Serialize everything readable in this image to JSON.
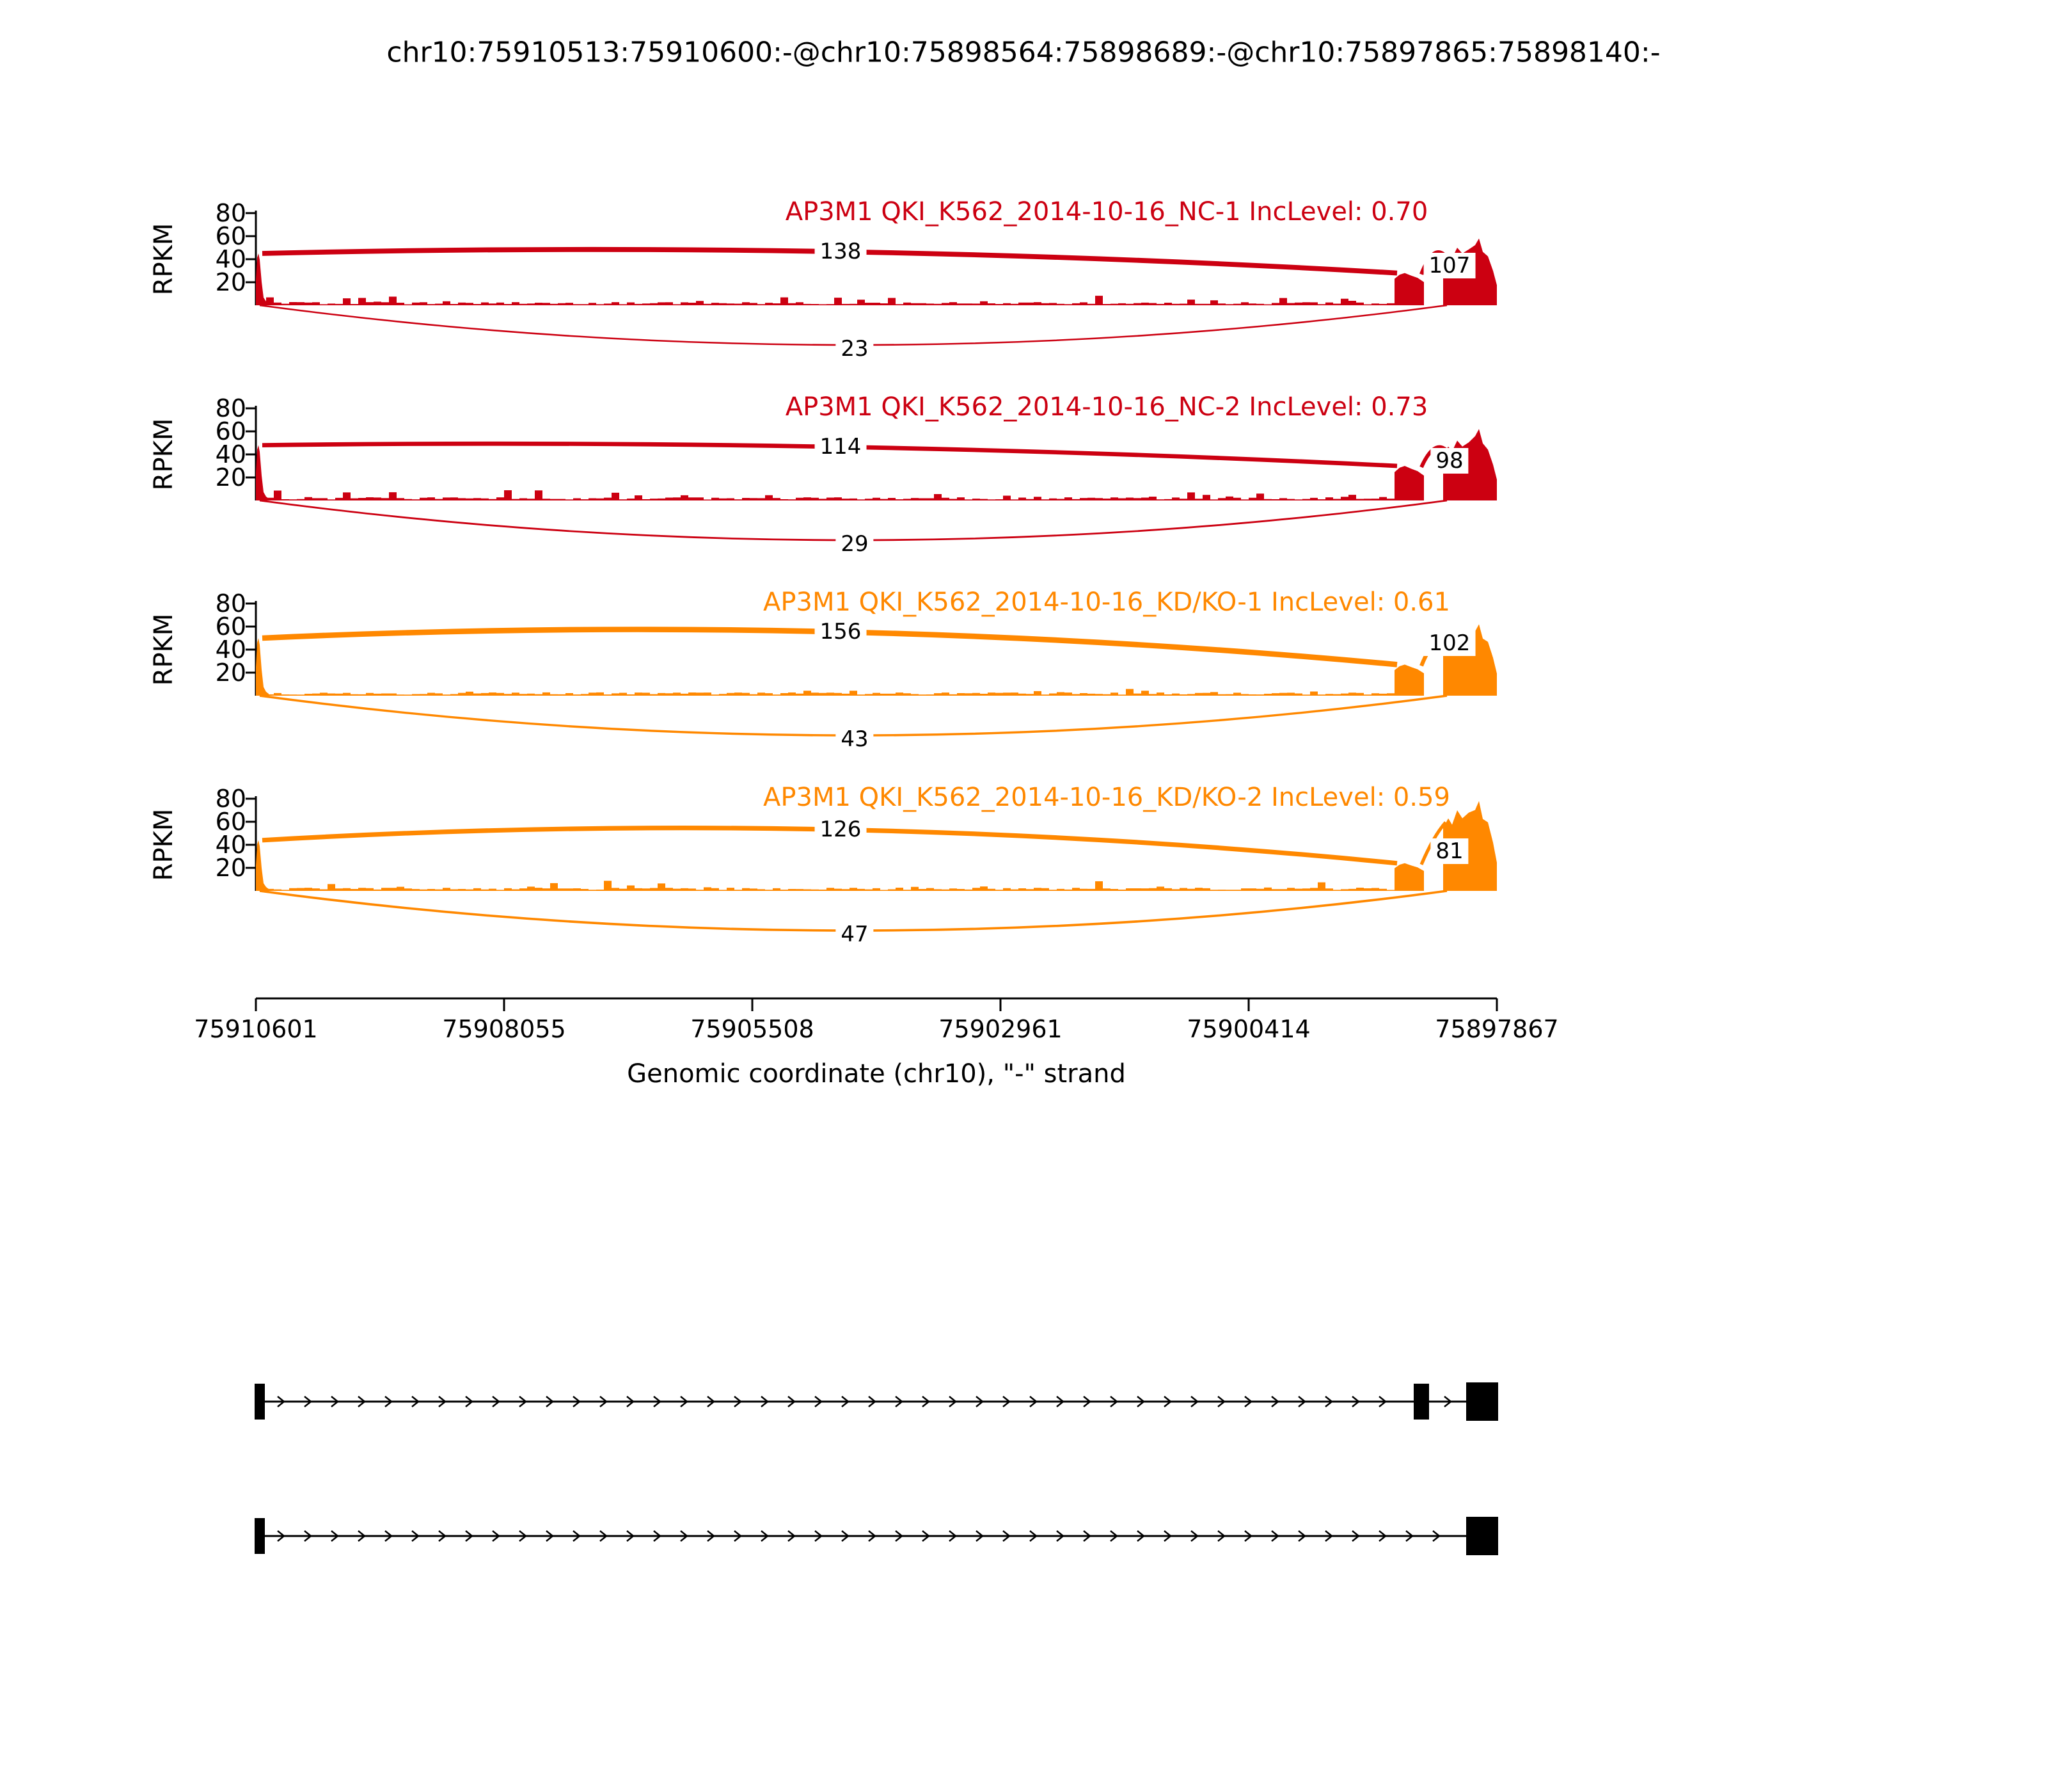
{
  "title": "chr10:75910513:75910600:-@chr10:75898564:75898689:-@chr10:75897865:75898140:-",
  "y_axis": {
    "label": "RPKM",
    "ticks": [
      "80",
      "60",
      "40",
      "20"
    ]
  },
  "x_axis": {
    "label": "Genomic coordinate (chr10), \"-\" strand",
    "ticks": [
      "75910601",
      "75908055",
      "75905508",
      "75902961",
      "75900414",
      "75897867"
    ]
  },
  "tracks": [
    {
      "label": "AP3M1 QKI_K562_2014-10-16_NC-1 IncLevel: 0.70",
      "color": "#CC0011",
      "inc_level": "0.70",
      "junction_labels": {
        "inclusion": "138",
        "skipping": "23",
        "downstream": "107"
      }
    },
    {
      "label": "AP3M1 QKI_K562_2014-10-16_NC-2 IncLevel: 0.73",
      "color": "#CC0011",
      "inc_level": "0.73",
      "junction_labels": {
        "inclusion": "114",
        "skipping": "29",
        "downstream": "98"
      }
    },
    {
      "label": "AP3M1 QKI_K562_2014-10-16_KD/KO-1 IncLevel: 0.61",
      "color": "#FF8800",
      "inc_level": "0.61",
      "junction_labels": {
        "inclusion": "156",
        "skipping": "43",
        "downstream": "102"
      }
    },
    {
      "label": "AP3M1 QKI_K562_2014-10-16_KD/KO-2 IncLevel: 0.59",
      "color": "#FF8800",
      "inc_level": "0.59",
      "junction_labels": {
        "inclusion": "126",
        "skipping": "47",
        "downstream": "81"
      }
    }
  ],
  "chart_data": {
    "type": "area",
    "subtype": "rna-seq-sashimi-plot",
    "gene": "AP3M1",
    "xlabel": "Genomic coordinate (chr10), \"-\" strand",
    "ylabel": "RPKM",
    "ylim": [
      0,
      80
    ],
    "y_ticks": [
      20,
      40,
      60,
      80
    ],
    "x_ticks_genomic": [
      75910601,
      75908055,
      75905508,
      75902961,
      75900414,
      75897867
    ],
    "x_axis_reversed": true,
    "exons": [
      {
        "name": "upstream-exon",
        "chrom": "chr10",
        "start": 75910513,
        "end": 75910600,
        "strand": "-"
      },
      {
        "name": "skipped-exon",
        "chrom": "chr10",
        "start": 75898564,
        "end": 75898689,
        "strand": "-"
      },
      {
        "name": "downstream-exon",
        "chrom": "chr10",
        "start": 75897865,
        "end": 75898140,
        "strand": "-"
      }
    ],
    "series": [
      {
        "name": "AP3M1 QKI_K562_2014-10-16_NC-1",
        "inc_level": 0.7,
        "color": "#CC0011",
        "junction_reads": {
          "upstream_to_skipped": 138,
          "upstream_to_downstream": 23,
          "skipped_to_downstream": 107
        },
        "coverage_rpkm_estimate": {
          "upstream_exon": 45,
          "intron": 2,
          "skipped_exon": 28,
          "downstream_exon": 50,
          "downstream_exon_peak": 58
        }
      },
      {
        "name": "AP3M1 QKI_K562_2014-10-16_NC-2",
        "inc_level": 0.73,
        "color": "#CC0011",
        "junction_reads": {
          "upstream_to_skipped": 114,
          "upstream_to_downstream": 29,
          "skipped_to_downstream": 98
        },
        "coverage_rpkm_estimate": {
          "upstream_exon": 48,
          "intron": 2,
          "skipped_exon": 30,
          "downstream_exon": 52,
          "downstream_exon_peak": 62
        }
      },
      {
        "name": "AP3M1 QKI_K562_2014-10-16_KD/KO-1",
        "inc_level": 0.61,
        "color": "#FF8800",
        "junction_reads": {
          "upstream_to_skipped": 156,
          "upstream_to_downstream": 43,
          "skipped_to_downstream": 102
        },
        "coverage_rpkm_estimate": {
          "upstream_exon": 50,
          "intron": 2,
          "skipped_exon": 27,
          "downstream_exon": 55,
          "downstream_exon_peak": 62
        }
      },
      {
        "name": "AP3M1 QKI_K562_2014-10-16_KD/KO-2",
        "inc_level": 0.59,
        "color": "#FF8800",
        "junction_reads": {
          "upstream_to_skipped": 126,
          "upstream_to_downstream": 47,
          "skipped_to_downstream": 81
        },
        "coverage_rpkm_estimate": {
          "upstream_exon": 44,
          "intron": 2,
          "skipped_exon": 24,
          "downstream_exon": 70,
          "downstream_exon_peak": 78
        }
      }
    ],
    "gene_models": [
      {
        "name": "isoform-inclusion",
        "exons": 3
      },
      {
        "name": "isoform-skipping",
        "exons": 2
      }
    ]
  }
}
